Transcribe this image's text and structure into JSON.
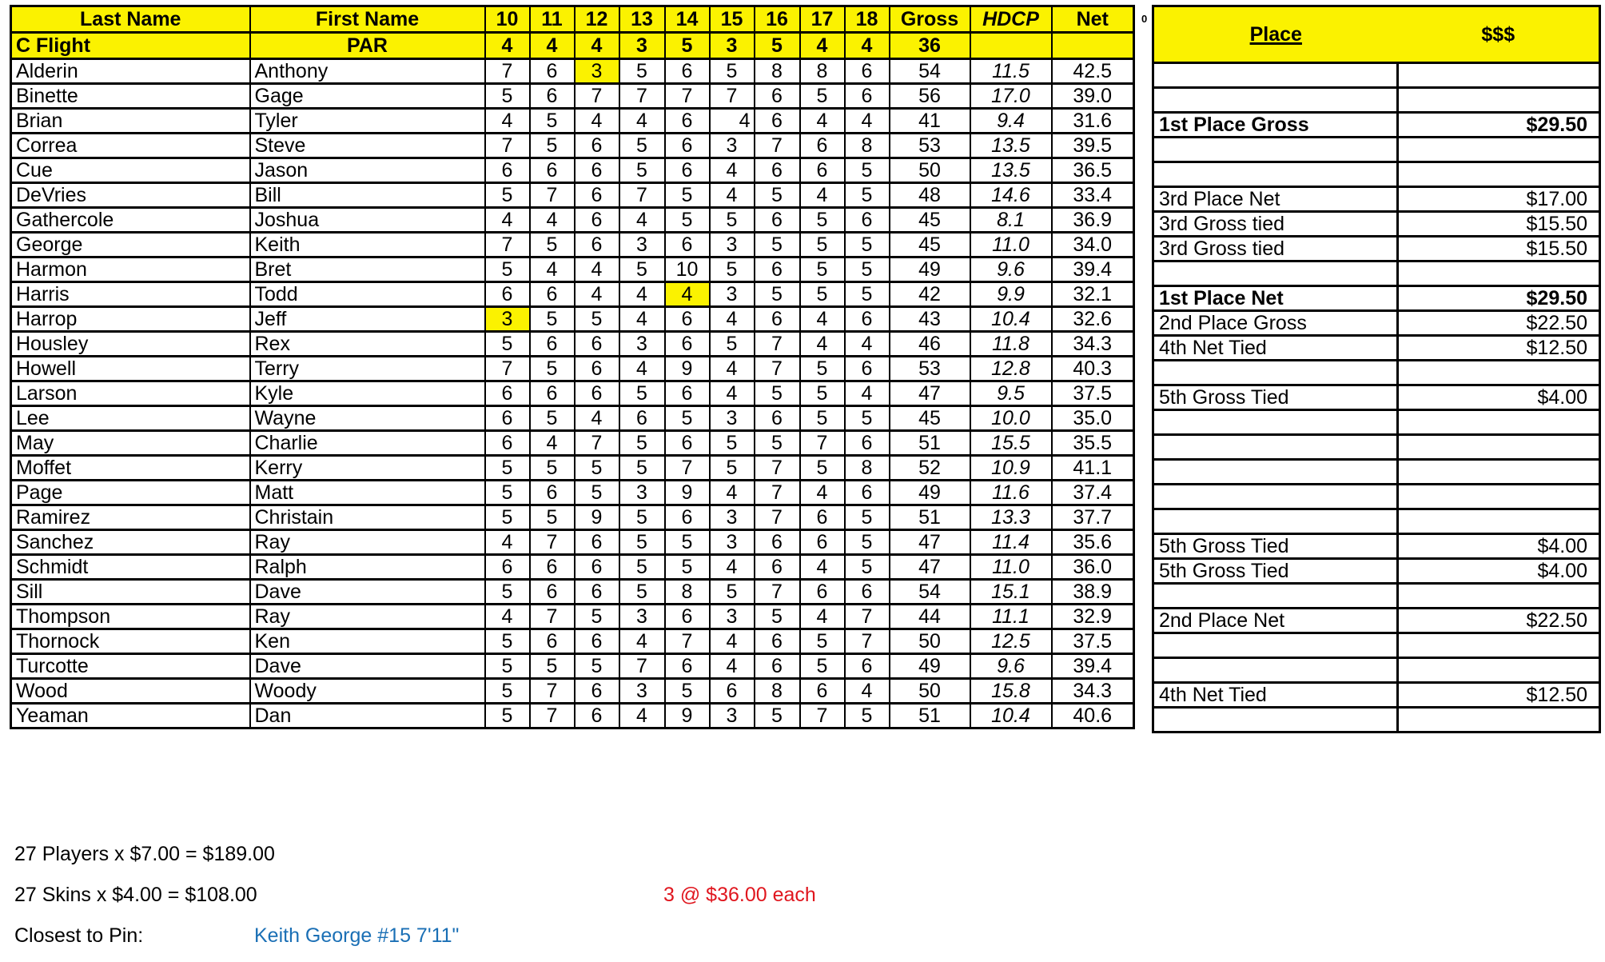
{
  "headers": {
    "last_name": "Last Name",
    "first_name": "First Name",
    "holes": [
      "10",
      "11",
      "12",
      "13",
      "14",
      "15",
      "16",
      "17",
      "18"
    ],
    "gross": "Gross",
    "hdcp": "HDCP",
    "net": "Net"
  },
  "par_row": {
    "flight": "C Flight",
    "label": "PAR",
    "pars": [
      "4",
      "4",
      "4",
      "3",
      "5",
      "3",
      "5",
      "4",
      "4"
    ],
    "total": "36"
  },
  "highlight_color": "#fbf200",
  "players": [
    {
      "last": "Alderin",
      "first": "Anthony",
      "scores": [
        "7",
        "6",
        "3",
        "5",
        "6",
        "5",
        "8",
        "8",
        "6"
      ],
      "gross": "54",
      "hdcp": "11.5",
      "net": "42.5",
      "highlight_holes": [
        "12"
      ]
    },
    {
      "last": "Binette",
      "first": "Gage",
      "scores": [
        "5",
        "6",
        "7",
        "7",
        "7",
        "7",
        "6",
        "5",
        "6"
      ],
      "gross": "56",
      "hdcp": "17.0",
      "net": "39.0"
    },
    {
      "last": "Brian",
      "first": "Tyler",
      "scores": [
        "4",
        "5",
        "4",
        "4",
        "6",
        "4",
        "6",
        "4",
        "4"
      ],
      "gross": "41",
      "hdcp": "9.4",
      "net": "31.6"
    },
    {
      "last": "Correa",
      "first": "Steve",
      "scores": [
        "7",
        "5",
        "6",
        "5",
        "6",
        "3",
        "7",
        "6",
        "8"
      ],
      "gross": "53",
      "hdcp": "13.5",
      "net": "39.5"
    },
    {
      "last": "Cue",
      "first": "Jason",
      "scores": [
        "6",
        "6",
        "6",
        "5",
        "6",
        "4",
        "6",
        "6",
        "5"
      ],
      "gross": "50",
      "hdcp": "13.5",
      "net": "36.5"
    },
    {
      "last": "DeVries",
      "first": "Bill",
      "scores": [
        "5",
        "7",
        "6",
        "7",
        "5",
        "4",
        "5",
        "4",
        "5"
      ],
      "gross": "48",
      "hdcp": "14.6",
      "net": "33.4"
    },
    {
      "last": "Gathercole",
      "first": "Joshua",
      "scores": [
        "4",
        "4",
        "6",
        "4",
        "5",
        "5",
        "6",
        "5",
        "6"
      ],
      "gross": "45",
      "hdcp": "8.1",
      "net": "36.9"
    },
    {
      "last": "George",
      "first": "Keith",
      "scores": [
        "7",
        "5",
        "6",
        "3",
        "6",
        "3",
        "5",
        "5",
        "5"
      ],
      "gross": "45",
      "hdcp": "11.0",
      "net": "34.0"
    },
    {
      "last": "Harmon",
      "first": "Bret",
      "scores": [
        "5",
        "4",
        "4",
        "5",
        "10",
        "5",
        "6",
        "5",
        "5"
      ],
      "gross": "49",
      "hdcp": "9.6",
      "net": "39.4"
    },
    {
      "last": "Harris",
      "first": "Todd",
      "scores": [
        "6",
        "6",
        "4",
        "4",
        "4",
        "3",
        "5",
        "5",
        "5"
      ],
      "gross": "42",
      "hdcp": "9.9",
      "net": "32.1",
      "highlight_holes": [
        "14"
      ]
    },
    {
      "last": "Harrop",
      "first": "Jeff",
      "scores": [
        "3",
        "5",
        "5",
        "4",
        "6",
        "4",
        "6",
        "4",
        "6"
      ],
      "gross": "43",
      "hdcp": "10.4",
      "net": "32.6",
      "highlight_holes": [
        "10"
      ]
    },
    {
      "last": "Housley",
      "first": "Rex",
      "scores": [
        "5",
        "6",
        "6",
        "3",
        "6",
        "5",
        "7",
        "4",
        "4"
      ],
      "gross": "46",
      "hdcp": "11.8",
      "net": "34.3"
    },
    {
      "last": "Howell",
      "first": "Terry",
      "scores": [
        "7",
        "5",
        "6",
        "4",
        "9",
        "4",
        "7",
        "5",
        "6"
      ],
      "gross": "53",
      "hdcp": "12.8",
      "net": "40.3"
    },
    {
      "last": "Larson",
      "first": "Kyle",
      "scores": [
        "6",
        "6",
        "6",
        "5",
        "6",
        "4",
        "5",
        "5",
        "4"
      ],
      "gross": "47",
      "hdcp": "9.5",
      "net": "37.5"
    },
    {
      "last": "Lee",
      "first": "Wayne",
      "scores": [
        "6",
        "5",
        "4",
        "6",
        "5",
        "3",
        "6",
        "5",
        "5"
      ],
      "gross": "45",
      "hdcp": "10.0",
      "net": "35.0"
    },
    {
      "last": "May",
      "first": "Charlie",
      "scores": [
        "6",
        "4",
        "7",
        "5",
        "6",
        "5",
        "5",
        "7",
        "6"
      ],
      "gross": "51",
      "hdcp": "15.5",
      "net": "35.5"
    },
    {
      "last": "Moffet",
      "first": "Kerry",
      "scores": [
        "5",
        "5",
        "5",
        "5",
        "7",
        "5",
        "7",
        "5",
        "8"
      ],
      "gross": "52",
      "hdcp": "10.9",
      "net": "41.1"
    },
    {
      "last": "Page",
      "first": "Matt",
      "scores": [
        "5",
        "6",
        "5",
        "3",
        "9",
        "4",
        "7",
        "4",
        "6"
      ],
      "gross": "49",
      "hdcp": "11.6",
      "net": "37.4"
    },
    {
      "last": "Ramirez",
      "first": "Christain",
      "scores": [
        "5",
        "5",
        "9",
        "5",
        "6",
        "3",
        "7",
        "6",
        "5"
      ],
      "gross": "51",
      "hdcp": "13.3",
      "net": "37.7"
    },
    {
      "last": "Sanchez",
      "first": "Ray",
      "scores": [
        "4",
        "7",
        "6",
        "5",
        "5",
        "3",
        "6",
        "6",
        "5"
      ],
      "gross": "47",
      "hdcp": "11.4",
      "net": "35.6"
    },
    {
      "last": "Schmidt",
      "first": "Ralph",
      "scores": [
        "6",
        "6",
        "6",
        "5",
        "5",
        "4",
        "6",
        "4",
        "5"
      ],
      "gross": "47",
      "hdcp": "11.0",
      "net": "36.0"
    },
    {
      "last": "Sill",
      "first": "Dave",
      "scores": [
        "5",
        "6",
        "6",
        "5",
        "8",
        "5",
        "7",
        "6",
        "6"
      ],
      "gross": "54",
      "hdcp": "15.1",
      "net": "38.9"
    },
    {
      "last": "Thompson",
      "first": "Ray",
      "scores": [
        "4",
        "7",
        "5",
        "3",
        "6",
        "3",
        "5",
        "4",
        "7"
      ],
      "gross": "44",
      "hdcp": "11.1",
      "net": "32.9"
    },
    {
      "last": "Thornock",
      "first": "Ken",
      "scores": [
        "5",
        "6",
        "6",
        "4",
        "7",
        "4",
        "6",
        "5",
        "7"
      ],
      "gross": "50",
      "hdcp": "12.5",
      "net": "37.5"
    },
    {
      "last": "Turcotte",
      "first": "Dave",
      "scores": [
        "5",
        "5",
        "5",
        "7",
        "6",
        "4",
        "6",
        "5",
        "6"
      ],
      "gross": "49",
      "hdcp": "9.6",
      "net": "39.4"
    },
    {
      "last": "Wood",
      "first": "Woody",
      "scores": [
        "5",
        "7",
        "6",
        "3",
        "5",
        "6",
        "8",
        "6",
        "4"
      ],
      "gross": "50",
      "hdcp": "15.8",
      "net": "34.3"
    },
    {
      "last": "Yeaman",
      "first": "Dan",
      "scores": [
        "5",
        "7",
        "6",
        "4",
        "9",
        "3",
        "5",
        "7",
        "5"
      ],
      "gross": "51",
      "hdcp": "10.4",
      "net": "40.6"
    }
  ],
  "marker": "0",
  "prizes": {
    "place_header": "Place",
    "amount_header": "$$$",
    "rows": [
      {
        "place": "",
        "amount": ""
      },
      {
        "place": "",
        "amount": ""
      },
      {
        "place": "1st Place Gross",
        "amount": "$29.50",
        "bold": true
      },
      {
        "place": "",
        "amount": ""
      },
      {
        "place": "",
        "amount": ""
      },
      {
        "place": "3rd Place Net",
        "amount": "$17.00"
      },
      {
        "place": "3rd Gross tied",
        "amount": "$15.50"
      },
      {
        "place": "3rd Gross tied",
        "amount": "$15.50"
      },
      {
        "place": "",
        "amount": ""
      },
      {
        "place": "1st Place Net",
        "amount": "$29.50",
        "bold": true
      },
      {
        "place": "2nd Place Gross",
        "amount": "$22.50"
      },
      {
        "place": "4th Net Tied",
        "amount": "$12.50"
      },
      {
        "place": "",
        "amount": ""
      },
      {
        "place": "5th Gross Tied",
        "amount": "$4.00"
      },
      {
        "place": "",
        "amount": ""
      },
      {
        "place": "",
        "amount": ""
      },
      {
        "place": "",
        "amount": ""
      },
      {
        "place": "",
        "amount": ""
      },
      {
        "place": "",
        "amount": ""
      },
      {
        "place": "5th Gross Tied",
        "amount": "$4.00"
      },
      {
        "place": "5th Gross Tied",
        "amount": "$4.00"
      },
      {
        "place": "",
        "amount": ""
      },
      {
        "place": "2nd Place Net",
        "amount": "$22.50"
      },
      {
        "place": "",
        "amount": ""
      },
      {
        "place": "",
        "amount": ""
      },
      {
        "place": "4th Net Tied",
        "amount": "$12.50"
      },
      {
        "place": "",
        "amount": ""
      }
    ]
  },
  "footer": {
    "players_line": "27 Players x $7.00 = $189.00",
    "skins_line": "27 Skins x $4.00 = $108.00",
    "skins_split": "3  @  $36.00 each",
    "skins_split_color": "#e0161e",
    "closest_label": "Closest to Pin:",
    "closest_value": "Keith George  #15  7'11\"",
    "closest_color": "#1a6fb5"
  }
}
